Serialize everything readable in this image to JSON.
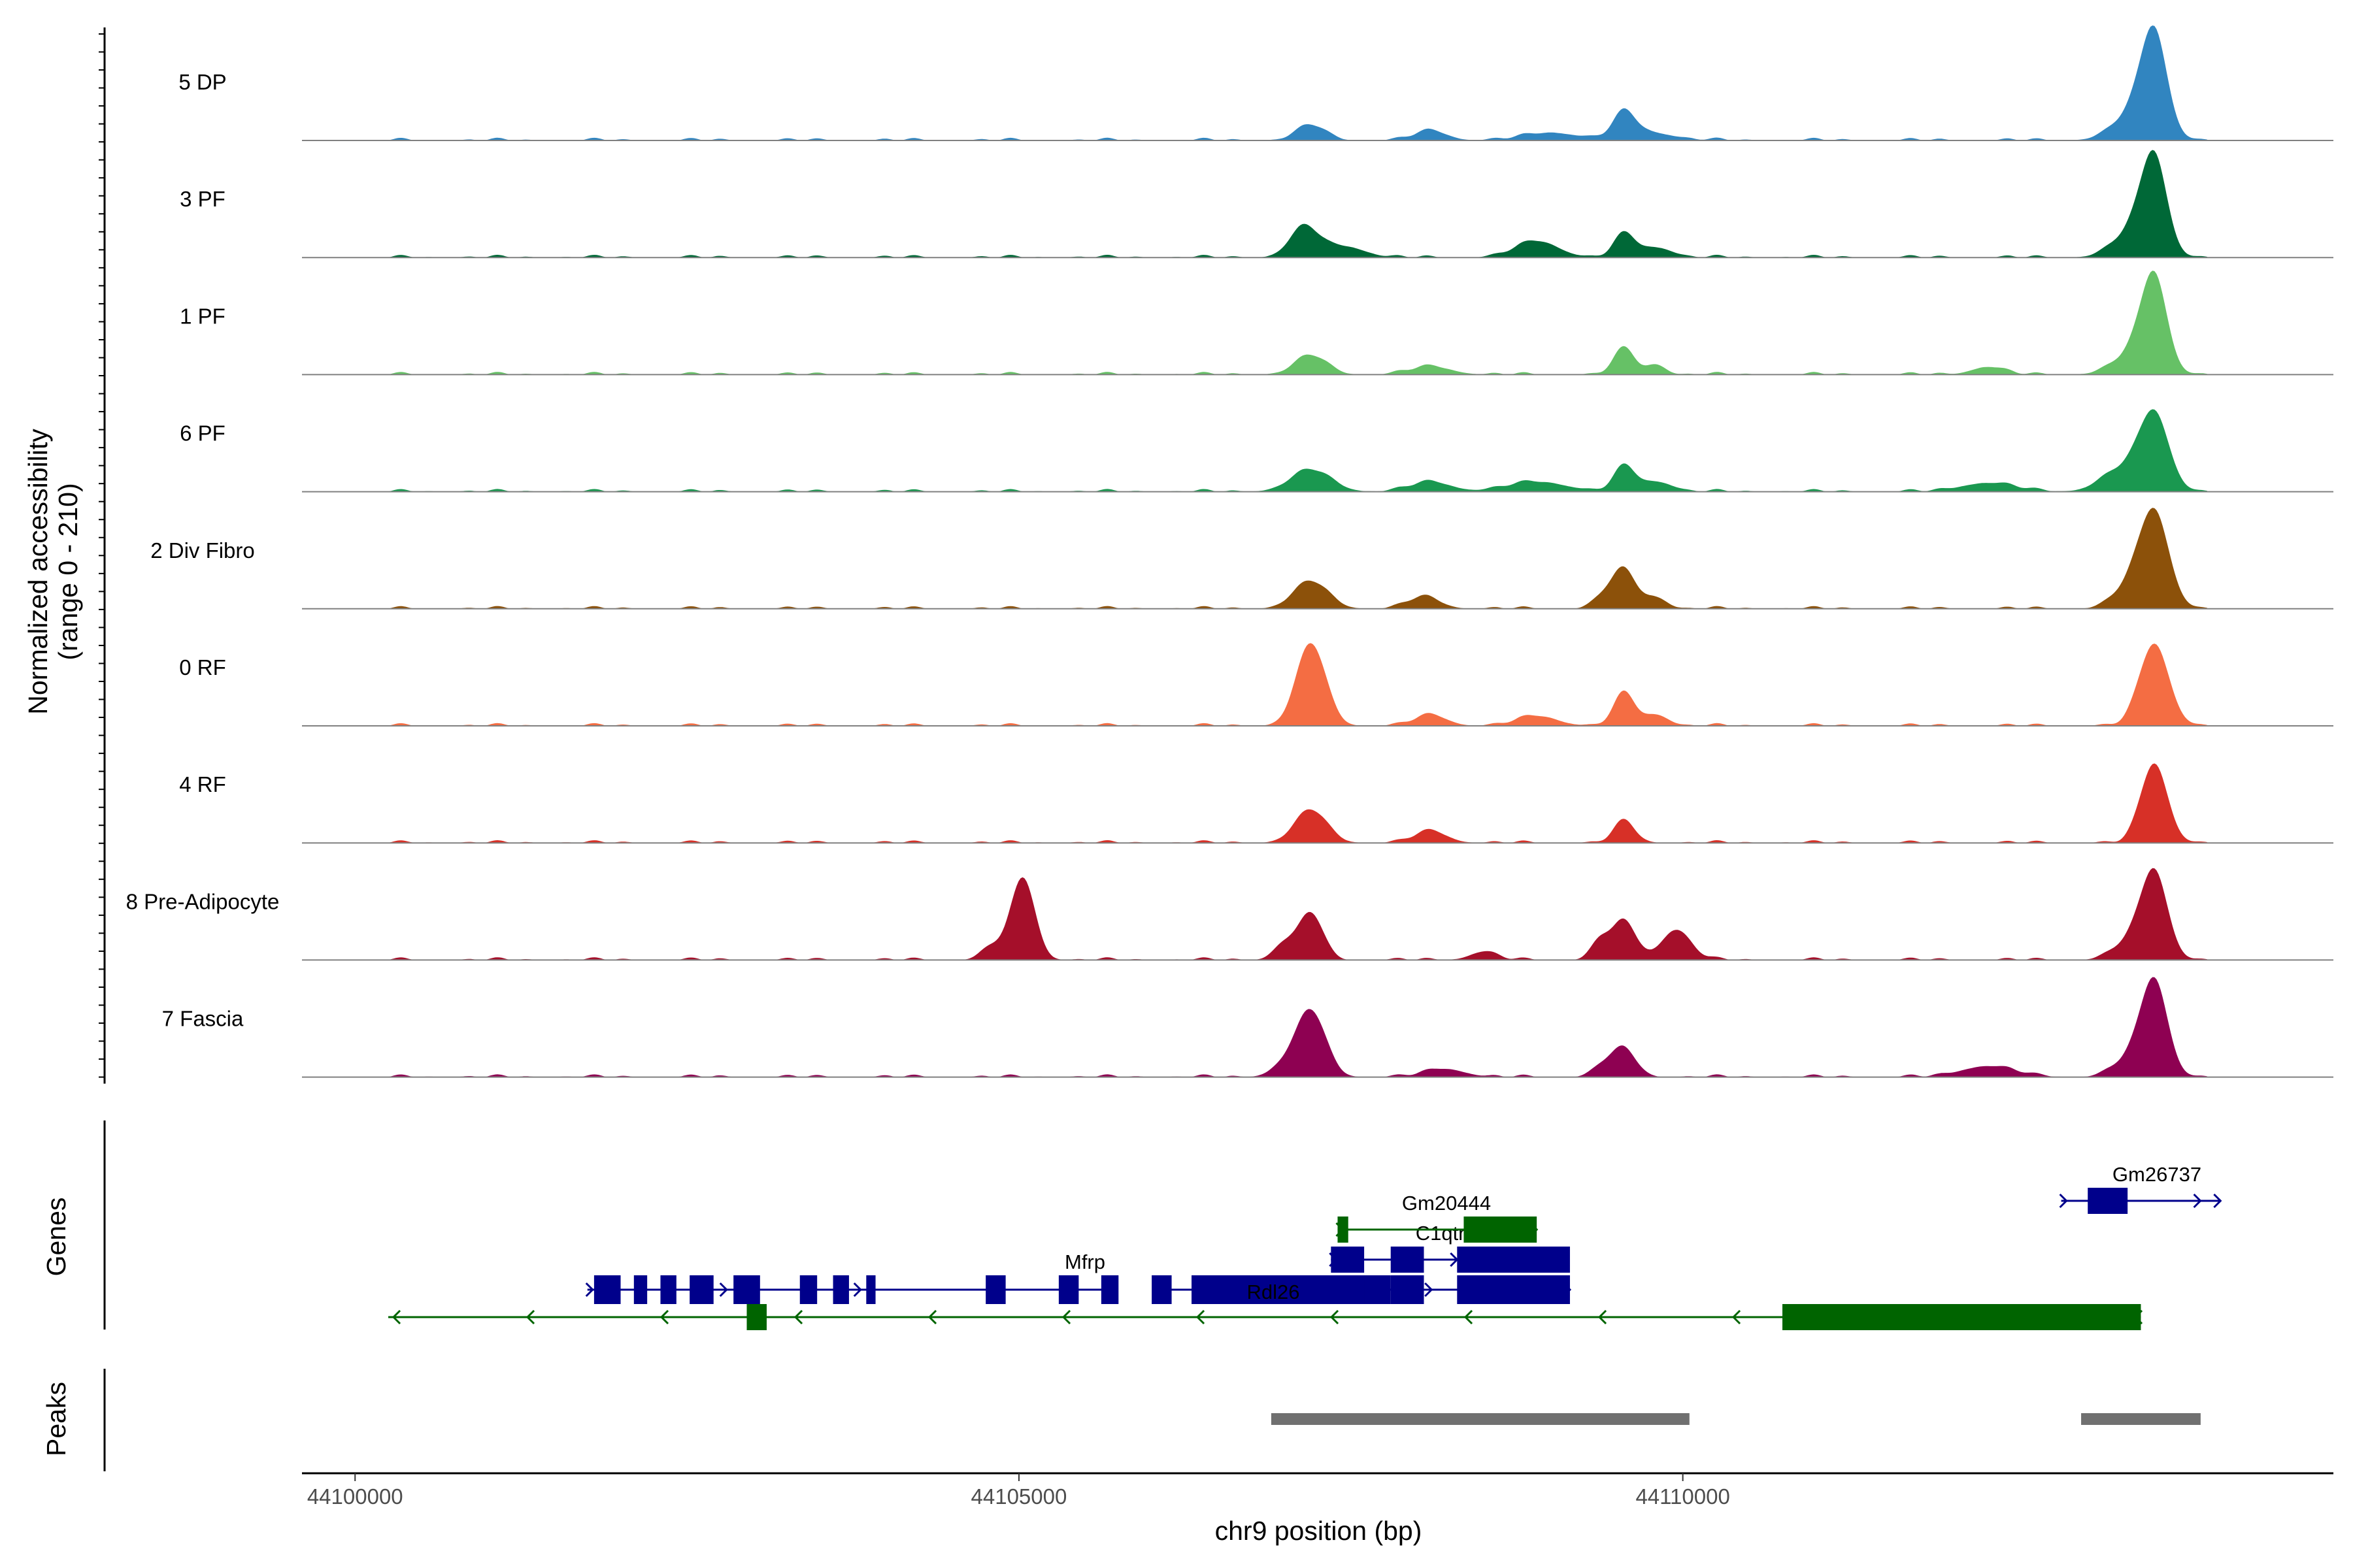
{
  "chart_data": {
    "type": "area",
    "title": "",
    "ylabel_line1": "Normalized accessibility",
    "ylabel_line2": "(range 0 - 210)",
    "yrange": [
      0,
      210
    ],
    "xlabel": "chr9 position (bp)",
    "xlim": [
      44099600,
      44114900
    ],
    "xticks": [
      44100000,
      44105000,
      44110000
    ],
    "xtick_labels": [
      "44100000",
      "44105000",
      "44110000"
    ],
    "background_level": 5,
    "tracks": [
      {
        "name": "5 DP",
        "color": "#3185C0",
        "peaks": [
          [
            44107200,
            28,
            110
          ],
          [
            44108100,
            18,
            120
          ],
          [
            44109000,
            14,
            200
          ],
          [
            44109560,
            42,
            80
          ],
          [
            44109700,
            16,
            200
          ],
          [
            44113550,
            170,
            95
          ],
          [
            44113420,
            55,
            160
          ]
        ]
      },
      {
        "name": "3 PF",
        "color": "#006837",
        "peaks": [
          [
            44107150,
            55,
            110
          ],
          [
            44107450,
            20,
            150
          ],
          [
            44108900,
            30,
            160
          ],
          [
            44109560,
            42,
            80
          ],
          [
            44109800,
            18,
            120
          ],
          [
            44113550,
            165,
            95
          ],
          [
            44113400,
            50,
            150
          ]
        ]
      },
      {
        "name": "1 PF",
        "color": "#66C166",
        "peaks": [
          [
            44107200,
            35,
            120
          ],
          [
            44108100,
            15,
            150
          ],
          [
            44109560,
            48,
            80
          ],
          [
            44109800,
            18,
            70
          ],
          [
            44112300,
            14,
            120
          ],
          [
            44113550,
            165,
            95
          ],
          [
            44113400,
            40,
            150
          ]
        ]
      },
      {
        "name": "6 PF",
        "color": "#1A9850",
        "peaks": [
          [
            44107200,
            40,
            150
          ],
          [
            44108100,
            18,
            150
          ],
          [
            44108900,
            18,
            220
          ],
          [
            44109560,
            45,
            80
          ],
          [
            44109800,
            18,
            120
          ],
          [
            44112300,
            16,
            200
          ],
          [
            44113550,
            140,
            110
          ],
          [
            44113300,
            40,
            150
          ]
        ]
      },
      {
        "name": "2 Div Fibro",
        "color": "#8C510A",
        "peaks": [
          [
            44107200,
            50,
            130
          ],
          [
            44108050,
            22,
            120
          ],
          [
            44109400,
            20,
            80
          ],
          [
            44109560,
            70,
            90
          ],
          [
            44109800,
            20,
            80
          ],
          [
            44113550,
            175,
            110
          ],
          [
            44113350,
            35,
            120
          ]
        ]
      },
      {
        "name": "0 RF",
        "color": "#F46D43",
        "peaks": [
          [
            44107200,
            150,
            110
          ],
          [
            44108100,
            20,
            120
          ],
          [
            44108900,
            18,
            150
          ],
          [
            44109560,
            60,
            80
          ],
          [
            44109800,
            20,
            90
          ],
          [
            44113550,
            150,
            110
          ]
        ]
      },
      {
        "name": "4 RF",
        "color": "#D73027",
        "peaks": [
          [
            44107200,
            60,
            120
          ],
          [
            44108100,
            22,
            120
          ],
          [
            44109560,
            40,
            80
          ],
          [
            44113550,
            145,
            100
          ]
        ]
      },
      {
        "name": "8 Pre-Adipocyte",
        "color": "#A50F2A",
        "peaks": [
          [
            44105030,
            150,
            90
          ],
          [
            44104800,
            25,
            80
          ],
          [
            44107200,
            85,
            90
          ],
          [
            44107000,
            30,
            80
          ],
          [
            44109560,
            70,
            90
          ],
          [
            44109380,
            35,
            70
          ],
          [
            44109950,
            55,
            110
          ],
          [
            44108500,
            15,
            100
          ],
          [
            44113550,
            160,
            100
          ],
          [
            44113350,
            30,
            120
          ]
        ]
      },
      {
        "name": "7 Fascia",
        "color": "#8E0152",
        "peaks": [
          [
            44107200,
            120,
            110
          ],
          [
            44107000,
            20,
            100
          ],
          [
            44108200,
            15,
            150
          ],
          [
            44109560,
            50,
            90
          ],
          [
            44109400,
            20,
            80
          ],
          [
            44112300,
            20,
            200
          ],
          [
            44113550,
            175,
            100
          ],
          [
            44113350,
            30,
            120
          ]
        ]
      }
    ],
    "genes": {
      "title": "Genes",
      "items": [
        {
          "name": "Mfrp",
          "strand": "+",
          "color": "#00008B",
          "start": 44101750,
          "end": 44105700,
          "exons": [
            [
              44101800,
              44102000
            ],
            [
              44102100,
              44102200
            ],
            [
              44102300,
              44102420
            ],
            [
              44102520,
              44102700
            ],
            [
              44102850,
              44103050
            ],
            [
              44103350,
              44103480
            ],
            [
              44103600,
              44103720
            ],
            [
              44103850,
              44103920
            ],
            [
              44104750,
              44104900
            ],
            [
              44105300,
              44105450
            ],
            [
              44105620,
              44105750
            ]
          ]
        },
        {
          "name": "Rdl26",
          "strand": "+",
          "color": "#00008B",
          "start": 44106050,
          "end": 44109150,
          "exons": [
            [
              44106000,
              44106150
            ],
            [
              44106300,
              44107800
            ],
            [
              44107350,
              44107600
            ],
            [
              44107800,
              44108050
            ],
            [
              44108300,
              44109150
            ]
          ]
        },
        {
          "name": "C1qtnf5",
          "strand": "+",
          "color": "#00008B",
          "start": 44107350,
          "end": 44108300,
          "exons": [
            [
              44107350,
              44107600
            ],
            [
              44107800,
              44108050
            ],
            [
              44108300,
              44109150
            ]
          ]
        },
        {
          "name": "Gm20444",
          "strand": "+",
          "color": "#006400",
          "start": 44107400,
          "end": 44108900,
          "exons": [
            [
              44107400,
              44107480
            ],
            [
              44108350,
              44108900
            ]
          ]
        },
        {
          "name": "Gm26737",
          "strand": "+",
          "color": "#00008B",
          "start": 44112850,
          "end": 44114050,
          "exons": [
            [
              44113050,
              44113350
            ]
          ]
        },
        {
          "name": "",
          "strand": "-",
          "color": "#006400",
          "start": 44100250,
          "end": 44113450,
          "exons": [
            [
              44102950,
              44103100
            ],
            [
              44110750,
              44113450
            ]
          ]
        }
      ]
    },
    "peaks_track": {
      "title": "Peaks",
      "color": "#707070",
      "intervals": [
        [
          44106900,
          44110050
        ],
        [
          44113000,
          44113900
        ]
      ]
    }
  }
}
